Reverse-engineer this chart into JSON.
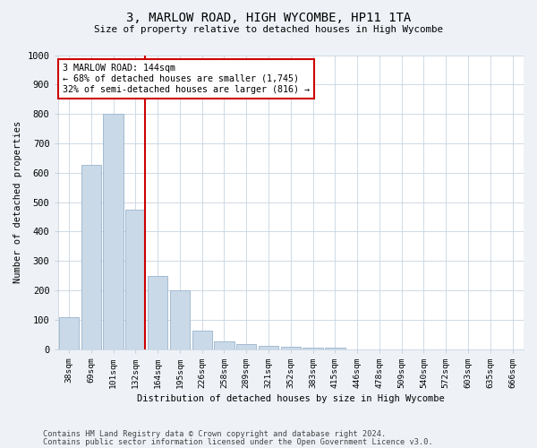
{
  "title": "3, MARLOW ROAD, HIGH WYCOMBE, HP11 1TA",
  "subtitle": "Size of property relative to detached houses in High Wycombe",
  "xlabel": "Distribution of detached houses by size in High Wycombe",
  "ylabel": "Number of detached properties",
  "categories": [
    "38sqm",
    "69sqm",
    "101sqm",
    "132sqm",
    "164sqm",
    "195sqm",
    "226sqm",
    "258sqm",
    "289sqm",
    "321sqm",
    "352sqm",
    "383sqm",
    "415sqm",
    "446sqm",
    "478sqm",
    "509sqm",
    "540sqm",
    "572sqm",
    "603sqm",
    "635sqm",
    "666sqm"
  ],
  "values": [
    108,
    628,
    800,
    475,
    248,
    200,
    62,
    25,
    18,
    12,
    8,
    5,
    5,
    0,
    0,
    0,
    0,
    0,
    0,
    0,
    0
  ],
  "bar_color": "#c9d9e8",
  "bar_edge_color": "#9ab4cc",
  "vline_color": "#cc0000",
  "annotation_text": "3 MARLOW ROAD: 144sqm\n← 68% of detached houses are smaller (1,745)\n32% of semi-detached houses are larger (816) →",
  "annotation_box_color": "#ffffff",
  "annotation_box_edge_color": "#cc0000",
  "ylim": [
    0,
    1000
  ],
  "yticks": [
    0,
    100,
    200,
    300,
    400,
    500,
    600,
    700,
    800,
    900,
    1000
  ],
  "footer_line1": "Contains HM Land Registry data © Crown copyright and database right 2024.",
  "footer_line2": "Contains public sector information licensed under the Open Government Licence v3.0.",
  "bg_color": "#eef2f7",
  "plot_bg_color": "#ffffff",
  "grid_color": "#c8d4e0"
}
